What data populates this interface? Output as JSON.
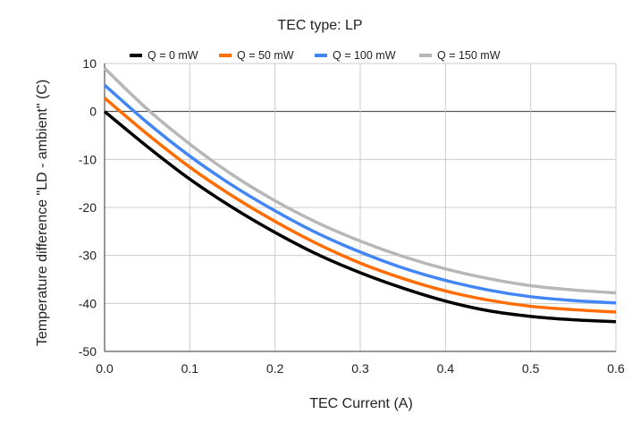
{
  "chart_data": {
    "type": "line",
    "title": "TEC type: LP",
    "xlabel": "TEC Current (A)",
    "ylabel": "Temperature difference \"LD - ambient\" (C)",
    "xlim": [
      0,
      0.6
    ],
    "ylim": [
      -50,
      10
    ],
    "x_ticks": [
      "0.0",
      "0.1",
      "0.2",
      "0.3",
      "0.4",
      "0.5",
      "0.6"
    ],
    "y_ticks": [
      "10",
      "0",
      "-10",
      "-20",
      "-30",
      "-40",
      "-50"
    ],
    "grid": true,
    "legend_position": "top",
    "x": [
      0.0,
      0.05,
      0.1,
      0.15,
      0.2,
      0.25,
      0.3,
      0.35,
      0.4,
      0.45,
      0.5,
      0.55,
      0.6
    ],
    "series": [
      {
        "name": "Q = 0 mW",
        "color": "#000000",
        "values": [
          0.0,
          -7.3,
          -14.1,
          -20.0,
          -25.2,
          -29.8,
          -33.6,
          -36.8,
          -39.5,
          -41.5,
          -42.7,
          -43.4,
          -43.8
        ]
      },
      {
        "name": "Q = 50 mW",
        "color": "#ff6d01",
        "values": [
          2.8,
          -4.7,
          -11.6,
          -17.6,
          -22.9,
          -27.6,
          -31.6,
          -34.8,
          -37.4,
          -39.3,
          -40.6,
          -41.3,
          -41.8
        ]
      },
      {
        "name": "Q = 100 mW",
        "color": "#4285f4",
        "values": [
          5.5,
          -2.3,
          -9.3,
          -15.4,
          -20.7,
          -25.4,
          -29.3,
          -32.6,
          -35.2,
          -37.2,
          -38.6,
          -39.4,
          -39.9
        ]
      },
      {
        "name": "Q = 150 mW",
        "color": "#b7b7b7",
        "values": [
          9.0,
          0.5,
          -6.8,
          -13.2,
          -18.6,
          -23.2,
          -27.0,
          -30.2,
          -32.8,
          -34.8,
          -36.3,
          -37.2,
          -37.8
        ]
      }
    ]
  }
}
